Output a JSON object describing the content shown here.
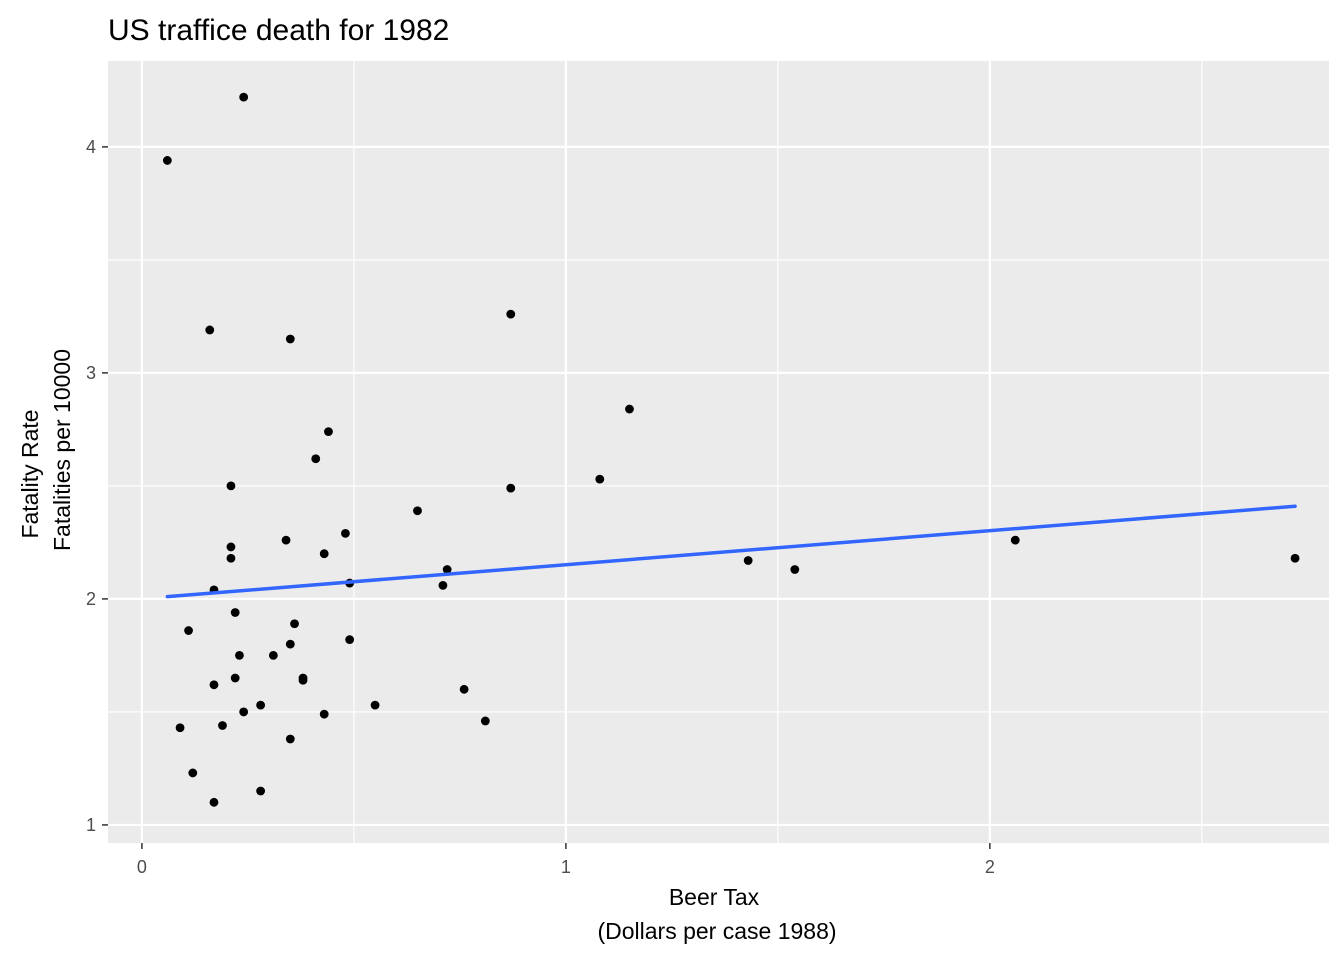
{
  "chart_data": {
    "type": "scatter",
    "title": "US traffice death for 1982",
    "xlabel": [
      "Beer Tax",
      "(Dollars per case 1988)"
    ],
    "ylabel": [
      "Fatality Rate",
      "Fatalities per 10000"
    ],
    "xlim": [
      -0.08,
      2.8
    ],
    "ylim": [
      0.92,
      4.38
    ],
    "x_ticks": [
      0,
      1,
      2
    ],
    "y_ticks": [
      1,
      2,
      3,
      4
    ],
    "x_minor_ticks": [
      0.5,
      1.5,
      2.5
    ],
    "y_minor_ticks": [
      1.5,
      2.5,
      3.5
    ],
    "grid": true,
    "legend": "none",
    "colors": {
      "panel_background": "#ebebeb",
      "grid": "#ffffff",
      "points": "#000000",
      "fit_line": "#3366ff",
      "tick_label": "#4d4d4d"
    },
    "points": [
      {
        "x": 0.06,
        "y": 3.94
      },
      {
        "x": 0.24,
        "y": 4.22
      },
      {
        "x": 0.16,
        "y": 3.19
      },
      {
        "x": 0.35,
        "y": 3.15
      },
      {
        "x": 0.87,
        "y": 3.26
      },
      {
        "x": 1.15,
        "y": 2.84
      },
      {
        "x": 0.44,
        "y": 2.74
      },
      {
        "x": 0.41,
        "y": 2.62
      },
      {
        "x": 1.08,
        "y": 2.53
      },
      {
        "x": 0.21,
        "y": 2.5
      },
      {
        "x": 0.87,
        "y": 2.49
      },
      {
        "x": 0.65,
        "y": 2.39
      },
      {
        "x": 0.48,
        "y": 2.29
      },
      {
        "x": 0.34,
        "y": 2.26
      },
      {
        "x": 2.06,
        "y": 2.26
      },
      {
        "x": 0.21,
        "y": 2.23
      },
      {
        "x": 0.43,
        "y": 2.2
      },
      {
        "x": 0.21,
        "y": 2.18
      },
      {
        "x": 1.43,
        "y": 2.17
      },
      {
        "x": 2.72,
        "y": 2.18
      },
      {
        "x": 0.72,
        "y": 2.13
      },
      {
        "x": 1.54,
        "y": 2.13
      },
      {
        "x": 0.49,
        "y": 2.07
      },
      {
        "x": 0.71,
        "y": 2.06
      },
      {
        "x": 0.17,
        "y": 2.04
      },
      {
        "x": 0.22,
        "y": 1.94
      },
      {
        "x": 0.36,
        "y": 1.89
      },
      {
        "x": 0.11,
        "y": 1.86
      },
      {
        "x": 0.49,
        "y": 1.82
      },
      {
        "x": 0.35,
        "y": 1.8
      },
      {
        "x": 0.23,
        "y": 1.75
      },
      {
        "x": 0.31,
        "y": 1.75
      },
      {
        "x": 0.38,
        "y": 1.65
      },
      {
        "x": 0.38,
        "y": 1.64
      },
      {
        "x": 0.22,
        "y": 1.65
      },
      {
        "x": 0.17,
        "y": 1.62
      },
      {
        "x": 0.76,
        "y": 1.6
      },
      {
        "x": 0.28,
        "y": 1.53
      },
      {
        "x": 0.55,
        "y": 1.53
      },
      {
        "x": 0.24,
        "y": 1.5
      },
      {
        "x": 0.43,
        "y": 1.49
      },
      {
        "x": 0.81,
        "y": 1.46
      },
      {
        "x": 0.19,
        "y": 1.44
      },
      {
        "x": 0.09,
        "y": 1.43
      },
      {
        "x": 0.35,
        "y": 1.38
      },
      {
        "x": 0.12,
        "y": 1.23
      },
      {
        "x": 0.28,
        "y": 1.15
      },
      {
        "x": 0.17,
        "y": 1.1
      }
    ],
    "fit_line": {
      "x": [
        0.06,
        2.72
      ],
      "y": [
        2.01,
        2.41
      ]
    }
  }
}
